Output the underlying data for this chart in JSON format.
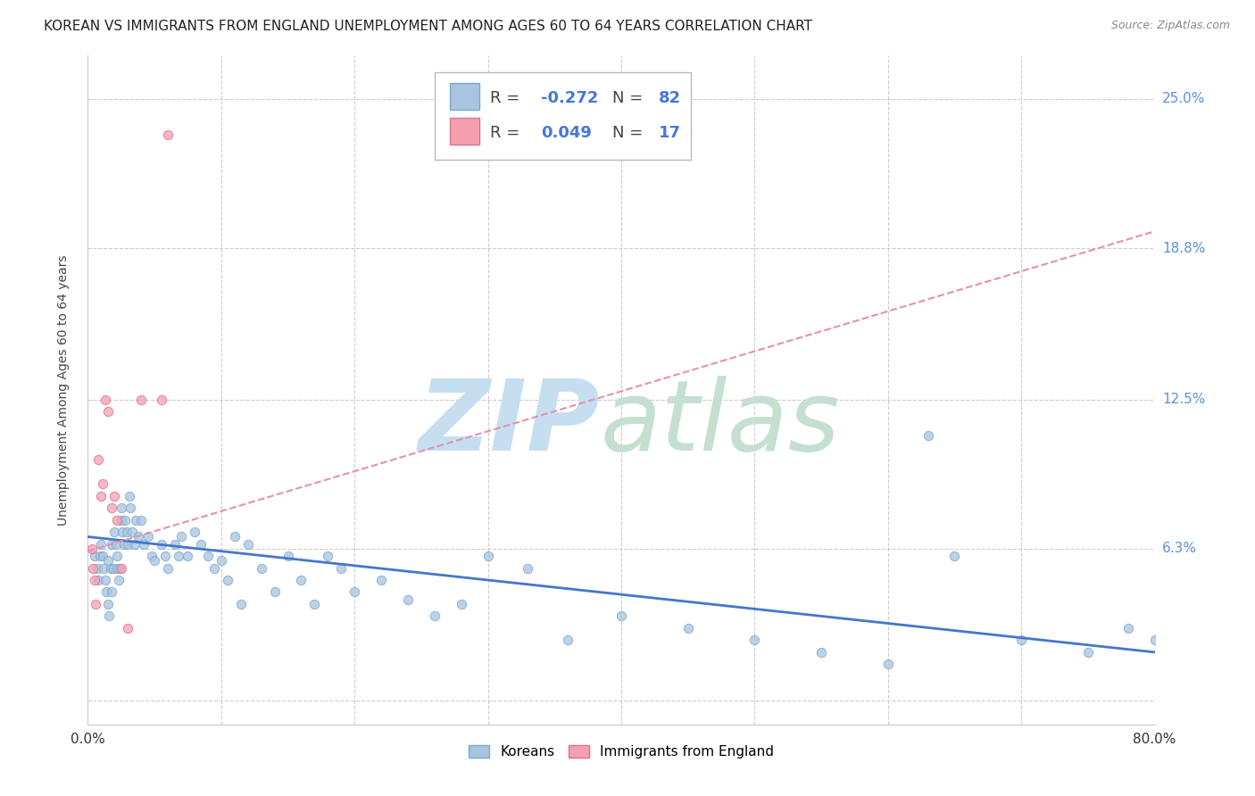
{
  "title": "KOREAN VS IMMIGRANTS FROM ENGLAND UNEMPLOYMENT AMONG AGES 60 TO 64 YEARS CORRELATION CHART",
  "source": "Source: ZipAtlas.com",
  "ylabel": "Unemployment Among Ages 60 to 64 years",
  "xlim": [
    0.0,
    0.8
  ],
  "ylim": [
    -0.01,
    0.268
  ],
  "ytick_vals": [
    0.0,
    0.063,
    0.125,
    0.188,
    0.25
  ],
  "ytick_labels": [
    "",
    "6.3%",
    "12.5%",
    "18.8%",
    "25.0%"
  ],
  "xtick_vals": [
    0.0,
    0.1,
    0.2,
    0.3,
    0.4,
    0.5,
    0.6,
    0.7,
    0.8
  ],
  "xtick_labels": [
    "0.0%",
    "",
    "",
    "",
    "",
    "",
    "",
    "",
    "80.0%"
  ],
  "korean_color": "#a8c4e0",
  "england_color": "#f4a0b0",
  "korean_edge_color": "#7aaace",
  "england_edge_color": "#e07090",
  "korean_R": "-0.272",
  "korean_N": "82",
  "england_R": "0.049",
  "england_N": "17",
  "korean_line_color": "#4477cc",
  "england_line_color": "#e890a8",
  "bg_color": "#ffffff",
  "grid_color": "#cccccc",
  "right_label_color": "#5b8fde",
  "legend_text_color": "#444444",
  "legend_value_color": "#4477dd",
  "korean_scatter_x": [
    0.005,
    0.007,
    0.008,
    0.009,
    0.01,
    0.011,
    0.012,
    0.013,
    0.014,
    0.015,
    0.015,
    0.016,
    0.017,
    0.018,
    0.018,
    0.019,
    0.02,
    0.021,
    0.022,
    0.022,
    0.023,
    0.024,
    0.025,
    0.025,
    0.026,
    0.027,
    0.028,
    0.029,
    0.03,
    0.031,
    0.032,
    0.033,
    0.035,
    0.036,
    0.038,
    0.04,
    0.042,
    0.045,
    0.048,
    0.05,
    0.055,
    0.058,
    0.06,
    0.065,
    0.068,
    0.07,
    0.075,
    0.08,
    0.085,
    0.09,
    0.095,
    0.1,
    0.105,
    0.11,
    0.115,
    0.12,
    0.13,
    0.14,
    0.15,
    0.16,
    0.17,
    0.18,
    0.19,
    0.2,
    0.22,
    0.24,
    0.26,
    0.28,
    0.3,
    0.33,
    0.36,
    0.4,
    0.45,
    0.5,
    0.55,
    0.6,
    0.63,
    0.65,
    0.7,
    0.75,
    0.78,
    0.8
  ],
  "korean_scatter_y": [
    0.06,
    0.055,
    0.05,
    0.06,
    0.065,
    0.06,
    0.055,
    0.05,
    0.045,
    0.058,
    0.04,
    0.035,
    0.055,
    0.065,
    0.045,
    0.055,
    0.07,
    0.065,
    0.055,
    0.06,
    0.05,
    0.055,
    0.08,
    0.075,
    0.07,
    0.065,
    0.075,
    0.07,
    0.065,
    0.085,
    0.08,
    0.07,
    0.065,
    0.075,
    0.068,
    0.075,
    0.065,
    0.068,
    0.06,
    0.058,
    0.065,
    0.06,
    0.055,
    0.065,
    0.06,
    0.068,
    0.06,
    0.07,
    0.065,
    0.06,
    0.055,
    0.058,
    0.05,
    0.068,
    0.04,
    0.065,
    0.055,
    0.045,
    0.06,
    0.05,
    0.04,
    0.06,
    0.055,
    0.045,
    0.05,
    0.042,
    0.035,
    0.04,
    0.06,
    0.055,
    0.025,
    0.035,
    0.03,
    0.025,
    0.02,
    0.015,
    0.11,
    0.06,
    0.025,
    0.02,
    0.03,
    0.025
  ],
  "england_scatter_x": [
    0.003,
    0.004,
    0.005,
    0.006,
    0.008,
    0.01,
    0.011,
    0.013,
    0.015,
    0.018,
    0.02,
    0.022,
    0.025,
    0.03,
    0.04,
    0.055,
    0.06
  ],
  "england_scatter_y": [
    0.063,
    0.055,
    0.05,
    0.04,
    0.1,
    0.085,
    0.09,
    0.125,
    0.12,
    0.08,
    0.085,
    0.075,
    0.055,
    0.03,
    0.125,
    0.125,
    0.235
  ],
  "korean_line_x0": 0.0,
  "korean_line_x1": 0.8,
  "korean_line_y0": 0.068,
  "korean_line_y1": 0.02,
  "england_line_x0": 0.0,
  "england_line_x1": 0.8,
  "england_line_y0": 0.062,
  "england_line_y1": 0.195,
  "watermark_zip_color": "#c5dff0",
  "watermark_atlas_color": "#c5e0d0",
  "title_fontsize": 11,
  "source_fontsize": 9,
  "label_fontsize": 10,
  "tick_fontsize": 11,
  "legend_fontsize": 13,
  "scatter_size": 55,
  "scatter_alpha": 0.75
}
